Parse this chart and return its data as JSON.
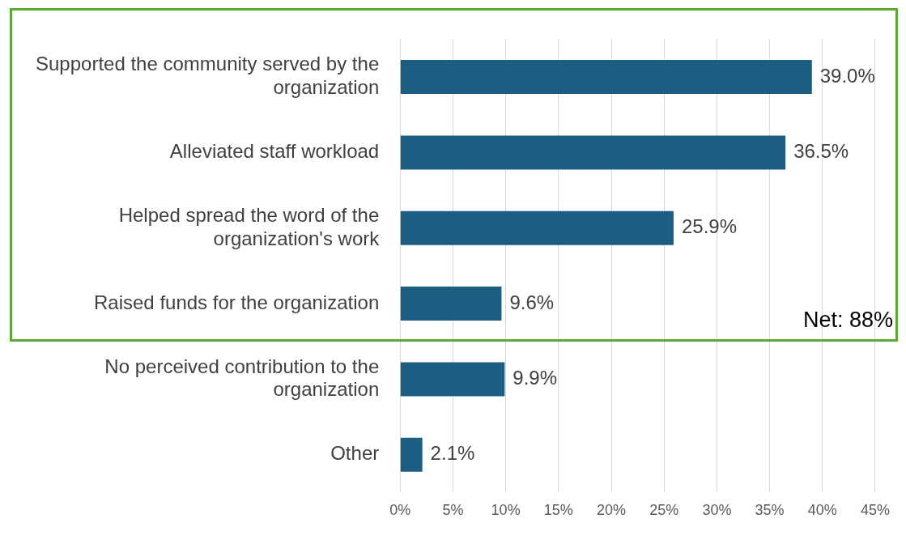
{
  "chart_data": {
    "type": "bar",
    "orientation": "horizontal",
    "categories": [
      "Supported the community served by the organization",
      "Alleviated staff workload",
      "Helped spread the word of the organization's work",
      "Raised funds for the organization",
      "No perceived contribution to the organization",
      "Other"
    ],
    "values": [
      39.0,
      36.5,
      25.9,
      9.6,
      9.9,
      2.1
    ],
    "value_labels": [
      "39.0%",
      "36.5%",
      "25.9%",
      "9.6%",
      "9.9%",
      "2.1%"
    ],
    "color": "#1b5e82",
    "xlim": [
      0,
      45
    ],
    "xticks": [
      {
        "value": 0,
        "label": "0%"
      },
      {
        "value": 5,
        "label": "5%"
      },
      {
        "value": 10,
        "label": "10%"
      },
      {
        "value": 15,
        "label": "15%"
      },
      {
        "value": 20,
        "label": "20%"
      },
      {
        "value": 25,
        "label": "25%"
      },
      {
        "value": 30,
        "label": "30%"
      },
      {
        "value": 35,
        "label": "35%"
      },
      {
        "value": 40,
        "label": "40%"
      },
      {
        "value": 45,
        "label": "45%"
      }
    ],
    "grid": "x",
    "annotations": [
      "Net: 88%"
    ]
  }
}
